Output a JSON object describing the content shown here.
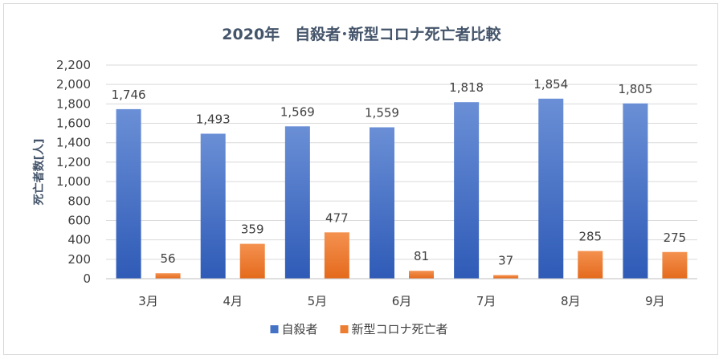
{
  "chart_data": {
    "type": "bar",
    "title": "2020年　自殺者･新型コロナ死亡者比較",
    "ylabel": "死亡者数[人]",
    "xlabel": "",
    "ylim": [
      0,
      2200
    ],
    "ytick_step": 200,
    "grid": true,
    "legend_position": "bottom",
    "categories": [
      "3月",
      "4月",
      "5月",
      "6月",
      "7月",
      "8月",
      "9月"
    ],
    "series": [
      {
        "name": "自殺者",
        "color": "#4472c4",
        "values": [
          1746,
          1493,
          1569,
          1559,
          1818,
          1854,
          1805
        ]
      },
      {
        "name": "新型コロナ死亡者",
        "color": "#ed7d31",
        "values": [
          56,
          359,
          477,
          81,
          37,
          285,
          275
        ]
      }
    ]
  }
}
